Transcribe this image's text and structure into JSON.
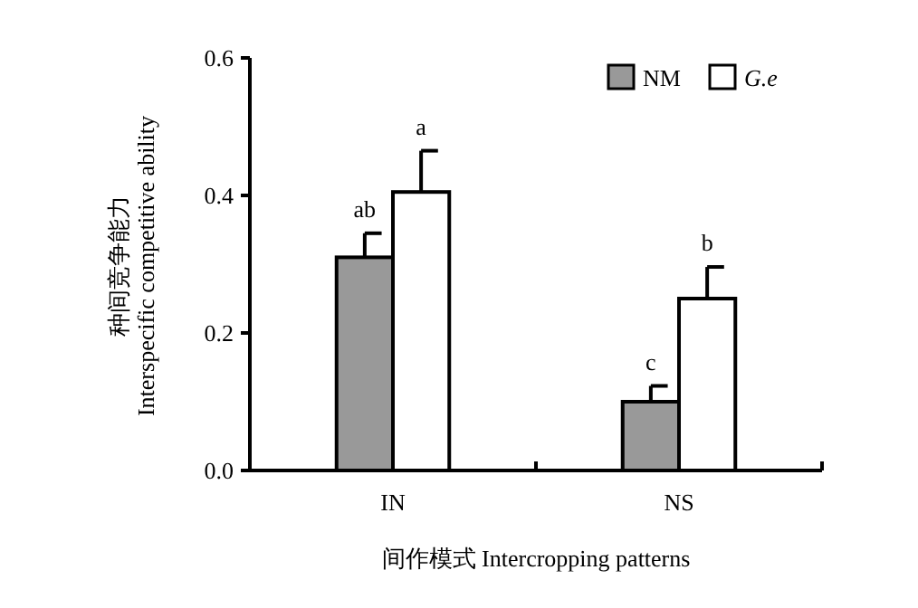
{
  "chart_data": {
    "type": "bar",
    "xlabel": "间作模式 Intercropping patterns",
    "ylabel": "种间竞争能力 Interspecific competitive ability",
    "categories": [
      "IN",
      "NS"
    ],
    "series": [
      {
        "name": "NM",
        "color": "#999999",
        "values": [
          0.31,
          0.1
        ],
        "errors": [
          [
            0.31,
            0.345
          ],
          [
            0.1,
            0.123
          ]
        ]
      },
      {
        "name": "*G.e*",
        "color": "#ffffff",
        "values": [
          0.405,
          0.25
        ],
        "errors": [
          [
            0.405,
            0.465
          ],
          [
            0.25,
            0.296
          ]
        ]
      }
    ],
    "annotations": [
      "ab",
      "a",
      "c",
      "b"
    ],
    "ylim": [
      0,
      0.6
    ],
    "yticks": [
      {
        "value": 0,
        "label": "0.0"
      },
      0.2,
      0.4,
      0.6
    ],
    "legend": "top right"
  }
}
